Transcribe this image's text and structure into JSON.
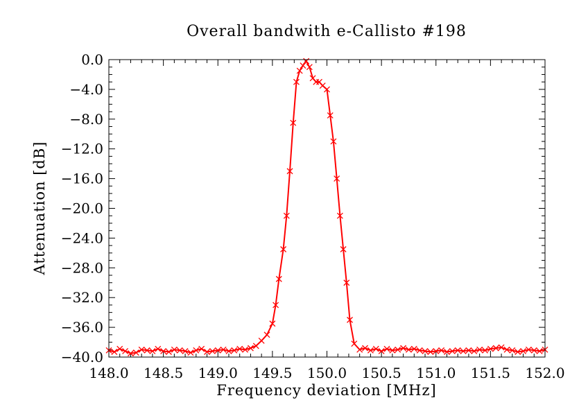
{
  "chart_data": {
    "type": "line",
    "title": "Overall bandwith e-Callisto #198",
    "xlabel": "Frequency deviation [MHz]",
    "ylabel": "Attenuation [dB]",
    "xlim": [
      148.0,
      152.0
    ],
    "ylim": [
      -40.0,
      0.0
    ],
    "xticks": [
      "148.0",
      "148.5",
      "149.0",
      "149.5",
      "150.0",
      "150.5",
      "151.0",
      "151.5",
      "152.0"
    ],
    "yticks": [
      "0.0",
      "-4.0",
      "-8.0",
      "-12.0",
      "-16.0",
      "-20.0",
      "-24.0",
      "-28.0",
      "-32.0",
      "-36.0",
      "-40.0"
    ],
    "grid": false,
    "legend": "none",
    "markers": "x",
    "color": "#ff0000",
    "series": [
      {
        "x": [
          148.0,
          148.05,
          148.1,
          148.15,
          148.2,
          148.25,
          148.3,
          148.35,
          148.4,
          148.45,
          148.5,
          148.55,
          148.6,
          148.65,
          148.7,
          148.75,
          148.8,
          148.85,
          148.9,
          148.95,
          149.0,
          149.05,
          149.1,
          149.15,
          149.2,
          149.25,
          149.3,
          149.35,
          149.4,
          149.45,
          149.5,
          149.53,
          149.56,
          149.6,
          149.63,
          149.66,
          149.69,
          149.72,
          149.75,
          149.78,
          149.81,
          149.84,
          149.87,
          149.9,
          149.93,
          149.96,
          150.0,
          150.03,
          150.06,
          150.09,
          150.12,
          150.15,
          150.18,
          150.21,
          150.25,
          150.3,
          150.35,
          150.4,
          150.45,
          150.5,
          150.55,
          150.6,
          150.65,
          150.7,
          150.75,
          150.8,
          150.85,
          150.9,
          150.95,
          151.0,
          151.05,
          151.1,
          151.15,
          151.2,
          151.25,
          151.3,
          151.35,
          151.4,
          151.45,
          151.5,
          151.55,
          151.6,
          151.65,
          151.7,
          151.75,
          151.8,
          151.85,
          151.9,
          151.95,
          152.0
        ],
        "y": [
          -39.1,
          -39.3,
          -38.9,
          -39.2,
          -39.5,
          -39.4,
          -39.0,
          -39.1,
          -39.2,
          -38.9,
          -39.2,
          -39.3,
          -39.0,
          -39.1,
          -39.2,
          -39.4,
          -39.1,
          -38.9,
          -39.3,
          -39.2,
          -39.1,
          -39.0,
          -39.2,
          -39.1,
          -38.9,
          -39.0,
          -38.8,
          -38.5,
          -37.8,
          -37.0,
          -35.5,
          -33.0,
          -29.5,
          -25.5,
          -21.0,
          -15.0,
          -8.5,
          -3.0,
          -1.5,
          -0.8,
          -0.2,
          -1.0,
          -2.5,
          -3.0,
          -3.0,
          -3.5,
          -4.0,
          -7.5,
          -11.0,
          -16.0,
          -21.0,
          -25.5,
          -30.0,
          -35.0,
          -38.2,
          -39.0,
          -38.8,
          -39.1,
          -38.9,
          -39.2,
          -38.9,
          -39.1,
          -39.0,
          -38.8,
          -39.0,
          -38.9,
          -39.1,
          -39.2,
          -39.3,
          -39.2,
          -39.1,
          -39.3,
          -39.2,
          -39.1,
          -39.2,
          -39.1,
          -39.2,
          -39.0,
          -39.1,
          -38.9,
          -38.8,
          -38.7,
          -39.0,
          -39.1,
          -39.3,
          -39.2,
          -39.0,
          -39.1,
          -39.2,
          -39.0
        ]
      }
    ]
  }
}
